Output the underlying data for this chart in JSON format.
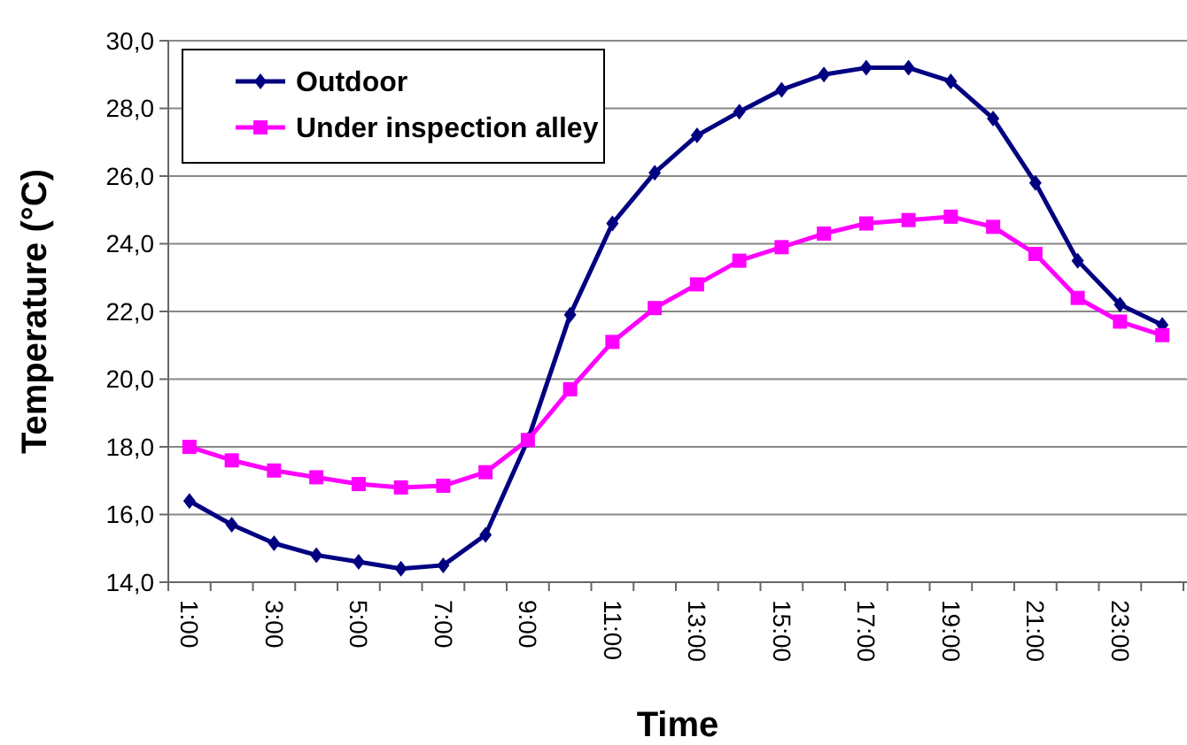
{
  "chart_data": {
    "type": "line",
    "xlabel": "Time",
    "ylabel": "Temperature (°C)",
    "categories": [
      "1:00",
      null,
      "3:00",
      null,
      "5:00",
      null,
      "7:00",
      null,
      "9:00",
      null,
      "11:00",
      null,
      "13:00",
      null,
      "15:00",
      null,
      "17:00",
      null,
      "19:00",
      null,
      "21:00",
      null,
      "23:00",
      null
    ],
    "series": [
      {
        "name": "Outdoor",
        "color": "#000080",
        "marker": "diamond",
        "values": [
          16.4,
          15.7,
          15.15,
          14.8,
          14.6,
          14.4,
          14.5,
          15.4,
          18.2,
          21.9,
          24.6,
          26.1,
          27.2,
          27.9,
          28.55,
          29.0,
          29.2,
          29.2,
          28.8,
          27.7,
          25.8,
          23.5,
          22.2,
          21.6
        ]
      },
      {
        "name": "Under inspection alley",
        "color": "#ff00ff",
        "marker": "square",
        "values": [
          18.0,
          17.6,
          17.3,
          17.1,
          16.9,
          16.8,
          16.85,
          17.25,
          18.2,
          19.7,
          21.1,
          22.1,
          22.8,
          23.5,
          23.9,
          24.3,
          24.6,
          24.7,
          24.8,
          24.5,
          23.7,
          22.4,
          21.7,
          21.3
        ]
      }
    ],
    "ylim": [
      14,
      30
    ],
    "yticks": [
      {
        "value": 14,
        "label": "14,0"
      },
      {
        "value": 16,
        "label": "16,0"
      },
      {
        "value": 18,
        "label": "18,0"
      },
      {
        "value": 20,
        "label": "20,0"
      },
      {
        "value": 22,
        "label": "22,0"
      },
      {
        "value": 24,
        "label": "24,0"
      },
      {
        "value": 26,
        "label": "26,0"
      },
      {
        "value": 28,
        "label": "28,0"
      },
      {
        "value": 30,
        "label": "30,0"
      }
    ],
    "grid": "y",
    "legend": "top left",
    "line_style": "solid"
  }
}
